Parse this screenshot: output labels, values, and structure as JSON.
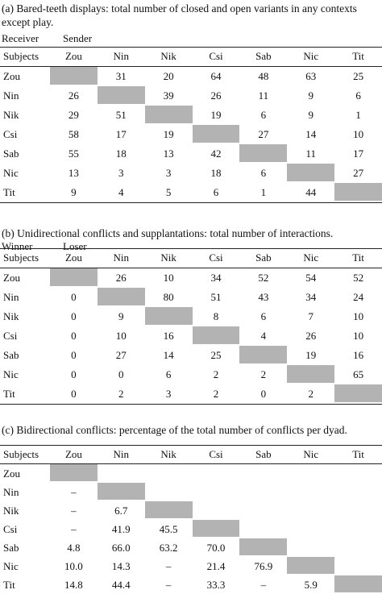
{
  "tables": [
    {
      "caption": "(a) Bared-teeth displays: total number of closed and open variants in any contexts except play.",
      "row_role": "Receiver",
      "col_role": "Sender",
      "header": [
        "Subjects",
        "Zou",
        "Nin",
        "Nik",
        "Csi",
        "Sab",
        "Nic",
        "Tit"
      ],
      "rows": [
        {
          "label": "Zou",
          "cells": [
            null,
            "31",
            "20",
            "64",
            "48",
            "63",
            "25"
          ]
        },
        {
          "label": "Nin",
          "cells": [
            "26",
            null,
            "39",
            "26",
            "11",
            "9",
            "6"
          ]
        },
        {
          "label": "Nik",
          "cells": [
            "29",
            "51",
            null,
            "19",
            "6",
            "9",
            "1"
          ]
        },
        {
          "label": "Csi",
          "cells": [
            "58",
            "17",
            "19",
            null,
            "27",
            "14",
            "10"
          ]
        },
        {
          "label": "Sab",
          "cells": [
            "55",
            "18",
            "13",
            "42",
            null,
            "11",
            "17"
          ]
        },
        {
          "label": "Nic",
          "cells": [
            "13",
            "3",
            "3",
            "18",
            "6",
            null,
            "27"
          ]
        },
        {
          "label": "Tit",
          "cells": [
            "9",
            "4",
            "5",
            "6",
            "1",
            "44",
            null
          ]
        }
      ]
    },
    {
      "caption": "(b) Unidirectional conflicts and supplantations: total number of interactions.",
      "row_role": "Winner",
      "col_role": "Loser",
      "header": [
        "Subjects",
        "Zou",
        "Nin",
        "Nik",
        "Csi",
        "Sab",
        "Nic",
        "Tit"
      ],
      "rows": [
        {
          "label": "Zou",
          "cells": [
            null,
            "26",
            "10",
            "34",
            "52",
            "54",
            "52"
          ]
        },
        {
          "label": "Nin",
          "cells": [
            "0",
            null,
            "80",
            "51",
            "43",
            "34",
            "24"
          ]
        },
        {
          "label": "Nik",
          "cells": [
            "0",
            "9",
            null,
            "8",
            "6",
            "7",
            "10"
          ]
        },
        {
          "label": "Csi",
          "cells": [
            "0",
            "10",
            "16",
            null,
            "4",
            "26",
            "10"
          ]
        },
        {
          "label": "Sab",
          "cells": [
            "0",
            "27",
            "14",
            "25",
            null,
            "19",
            "16"
          ]
        },
        {
          "label": "Nic",
          "cells": [
            "0",
            "0",
            "6",
            "2",
            "2",
            null,
            "65"
          ]
        },
        {
          "label": "Tit",
          "cells": [
            "0",
            "2",
            "3",
            "2",
            "0",
            "2",
            null
          ]
        }
      ]
    },
    {
      "caption": "(c) Bidirectional conflicts: percentage of the total number of conflicts per dyad.",
      "header": [
        "Subjects",
        "Zou",
        "Nin",
        "Nik",
        "Csi",
        "Sab",
        "Nic",
        "Tit"
      ],
      "rows": [
        {
          "label": "Zou",
          "cells": [
            null
          ]
        },
        {
          "label": "Nin",
          "cells": [
            "–",
            null
          ]
        },
        {
          "label": "Nik",
          "cells": [
            "–",
            "6.7",
            null
          ]
        },
        {
          "label": "Csi",
          "cells": [
            "–",
            "41.9",
            "45.5",
            null
          ]
        },
        {
          "label": "Sab",
          "cells": [
            "4.8",
            "66.0",
            "63.2",
            "70.0",
            null
          ]
        },
        {
          "label": "Nic",
          "cells": [
            "10.0",
            "14.3",
            "–",
            "21.4",
            "76.9",
            null
          ]
        },
        {
          "label": "Tit",
          "cells": [
            "14.8",
            "44.4",
            "–",
            "33.3",
            "–",
            "5.9",
            null
          ]
        }
      ]
    }
  ]
}
